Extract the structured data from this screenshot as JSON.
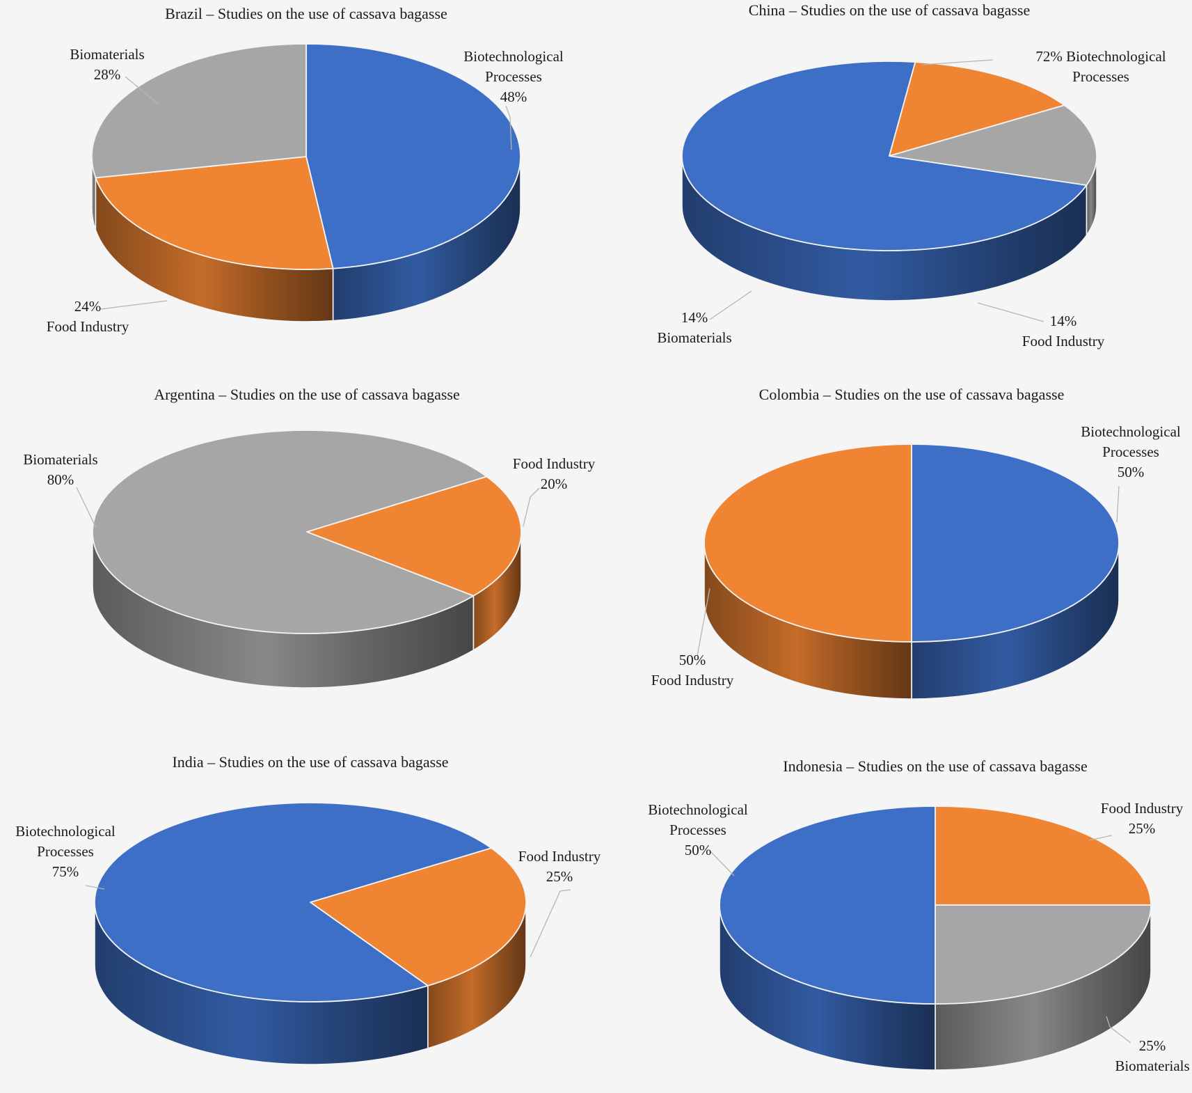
{
  "colors": {
    "Biotechnological Processes": "#3d6fc6",
    "Food Industry": "#ef8432",
    "Biomaterials": "#a6a6a6"
  },
  "chart_data": [
    {
      "type": "pie",
      "title": "Brazil  – Studies  on the use of cassava bagasse",
      "slices": [
        {
          "label": "Biotechnological Processes",
          "value": 48,
          "text": [
            "Biotechnological",
            "Processes",
            "48%"
          ]
        },
        {
          "label": "Food Industry",
          "value": 24,
          "text": [
            "24%",
            "Food Industry"
          ]
        },
        {
          "label": "Biomaterials",
          "value": 28,
          "text": [
            "Biomaterials",
            "28%"
          ]
        }
      ]
    },
    {
      "type": "pie",
      "title": "China  – Studies  on the use of cassava bagasse",
      "slices": [
        {
          "label": "Biotechnological Processes",
          "value": 72,
          "text": [
            "72%  Biotechnological",
            "Processes"
          ]
        },
        {
          "label": "Food Industry",
          "value": 14,
          "text": [
            "14%",
            "Food Industry"
          ]
        },
        {
          "label": "Biomaterials",
          "value": 14,
          "text": [
            "14%",
            "Biomaterials"
          ]
        }
      ]
    },
    {
      "type": "pie",
      "title": "Argentina  – Studies  on the use of cassava bagasse",
      "slices": [
        {
          "label": "Food Industry",
          "value": 20,
          "text": [
            "Food Industry",
            "20%"
          ]
        },
        {
          "label": "Biomaterials",
          "value": 80,
          "text": [
            "Biomaterials",
            "80%"
          ]
        }
      ]
    },
    {
      "type": "pie",
      "title": "Colombia  – Studies  on the use of cassava bagasse",
      "slices": [
        {
          "label": "Biotechnological Processes",
          "value": 50,
          "text": [
            "Biotechnological",
            "Processes",
            "50%"
          ]
        },
        {
          "label": "Food Industry",
          "value": 50,
          "text": [
            "50%",
            "Food Industry"
          ]
        }
      ]
    },
    {
      "type": "pie",
      "title": "India  – Studies  on the use of cassava bagasse",
      "slices": [
        {
          "label": "Food Industry",
          "value": 25,
          "text": [
            "Food Industry",
            "25%"
          ]
        },
        {
          "label": "Biotechnological Processes",
          "value": 75,
          "text": [
            "Biotechnological",
            "Processes",
            "75%"
          ]
        }
      ]
    },
    {
      "type": "pie",
      "title": "Indonesia  – Studies  on the use of cassava bagasse",
      "slices": [
        {
          "label": "Food Industry",
          "value": 25,
          "text": [
            "Food Industry",
            "25%"
          ]
        },
        {
          "label": "Biomaterials",
          "value": 25,
          "text": [
            "25%",
            "Biomaterials"
          ]
        },
        {
          "label": "Biotechnological Processes",
          "value": 50,
          "text": [
            "Biotechnological",
            "Processes",
            "50%"
          ]
        }
      ]
    }
  ]
}
